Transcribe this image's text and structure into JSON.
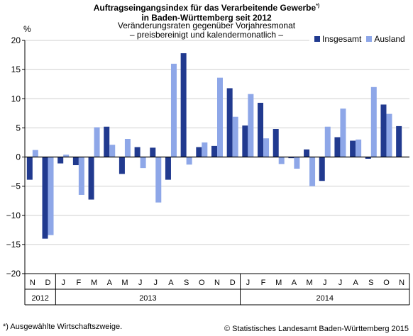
{
  "header": {
    "title_line1": "Auftragseingangsindex für das Verarbeitende Gewerbe",
    "title_marker": "*)",
    "title_line2": "in Baden-Württemberg seit 2012",
    "subtitle_line1": "Veränderungsraten gegenüber Vorjahresmonat",
    "subtitle_line2": "– preisbereinigt und kalendermonatlich –"
  },
  "footnote": "*) Ausgewählte Wirtschaftszweige.",
  "source": "© Statistisches Landesamt Baden-Württemberg 2015",
  "colors": {
    "insgesamt": "#213a8f",
    "ausland": "#8ea7e8",
    "grid": "#cfcfcf"
  },
  "chart_data": {
    "type": "bar",
    "ylabel": "%",
    "ylim": [
      -20,
      20
    ],
    "yticks": [
      20,
      15,
      10,
      5,
      0,
      -5,
      -10,
      -15,
      -20
    ],
    "grid": true,
    "legend_position": "top-right",
    "categories": [
      "N",
      "D",
      "J",
      "F",
      "M",
      "A",
      "M",
      "J",
      "J",
      "A",
      "S",
      "O",
      "N",
      "D",
      "J",
      "F",
      "M",
      "A",
      "M",
      "J",
      "J",
      "A",
      "S",
      "O",
      "N"
    ],
    "years": [
      {
        "label": "2012",
        "months": 2
      },
      {
        "label": "2013",
        "months": 12
      },
      {
        "label": "2014",
        "months": 11
      }
    ],
    "series": [
      {
        "name": "Insgesamt",
        "values": [
          -3.9,
          -14.0,
          -1.1,
          -1.4,
          -7.3,
          5.2,
          -2.9,
          1.7,
          1.6,
          -3.9,
          17.8,
          1.7,
          1.9,
          11.8,
          5.4,
          9.3,
          4.8,
          -0.2,
          1.3,
          -4.1,
          3.4,
          2.8,
          -0.3,
          9.0,
          5.3
        ]
      },
      {
        "name": "Ausland",
        "values": [
          1.2,
          -13.4,
          0.4,
          -6.5,
          5.1,
          2.1,
          3.1,
          -1.9,
          -7.8,
          16.0,
          -1.3,
          2.5,
          13.6,
          6.9,
          10.8,
          3.2,
          -1.2,
          -2.0,
          -5.0,
          5.2,
          8.3,
          3.0,
          12.0,
          7.4,
          null
        ]
      }
    ]
  }
}
